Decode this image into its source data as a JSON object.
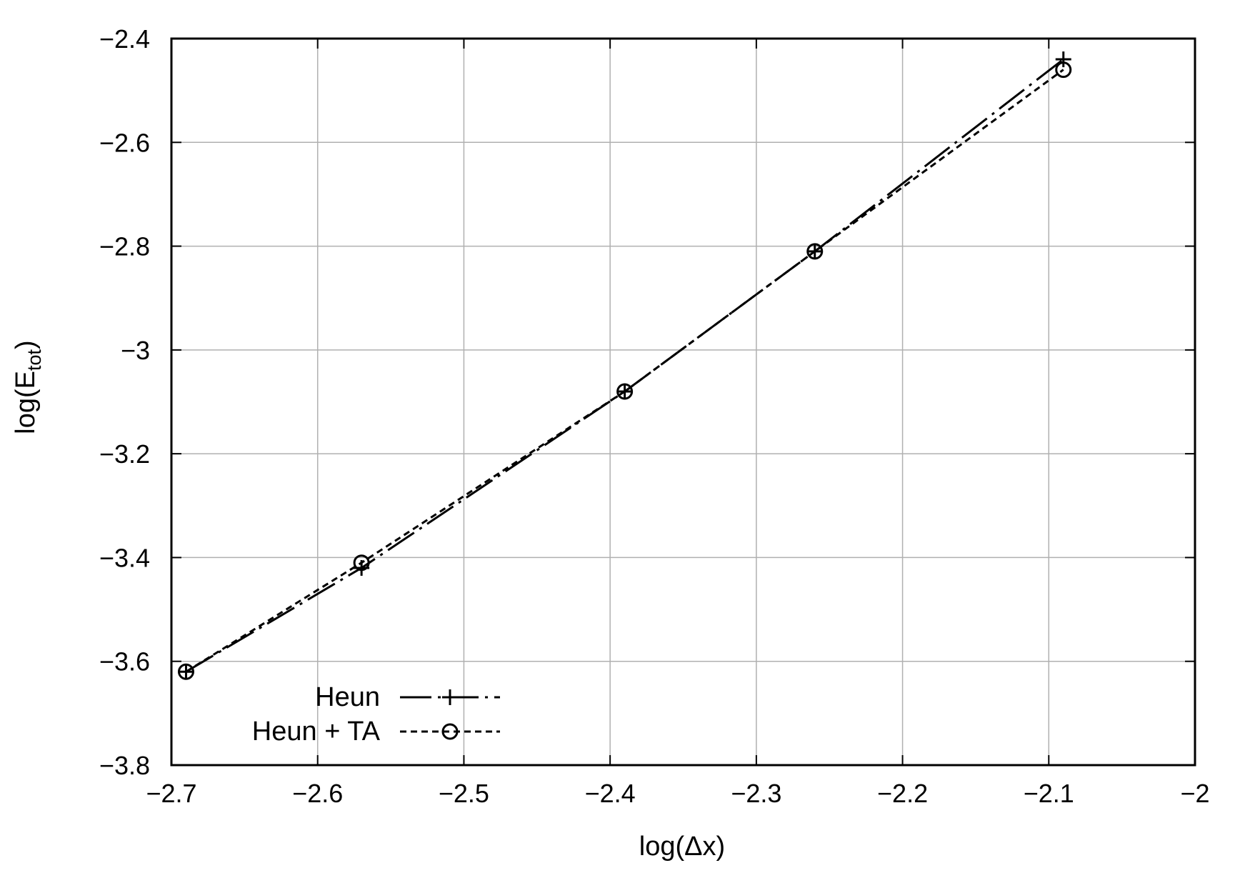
{
  "chart_data": {
    "type": "line",
    "title": "",
    "xlabel": "log(Δx)",
    "ylabel": {
      "main": "log(E",
      "sub": "tot",
      "close": ")"
    },
    "xlim": [
      -2.7,
      -2.0
    ],
    "ylim": [
      -3.8,
      -2.4
    ],
    "x_ticks": [
      -2.7,
      -2.6,
      -2.5,
      -2.4,
      -2.3,
      -2.2,
      -2.1,
      -2.0
    ],
    "x_tick_labels": [
      "−2.7",
      "−2.6",
      "−2.5",
      "−2.4",
      "−2.3",
      "−2.2",
      "−2.1",
      "−2"
    ],
    "y_ticks": [
      -3.8,
      -3.6,
      -3.4,
      -3.2,
      -3.0,
      -2.8,
      -2.6,
      -2.4
    ],
    "y_tick_labels": [
      "−3.8",
      "−3.6",
      "−3.4",
      "−3.2",
      "−3",
      "−2.8",
      "−2.6",
      "−2.4"
    ],
    "grid": true,
    "legend_position": "bottom-left",
    "series": [
      {
        "name": "Heun",
        "marker": "plus",
        "line_style": "long-dash",
        "color": "#000000",
        "x": [
          -2.69,
          -2.57,
          -2.39,
          -2.26,
          -2.09
        ],
        "y": [
          -3.62,
          -3.42,
          -3.08,
          -2.81,
          -2.44
        ]
      },
      {
        "name": "Heun + TA",
        "marker": "circle",
        "line_style": "dotted",
        "color": "#000000",
        "x": [
          -2.69,
          -2.57,
          -2.39,
          -2.26,
          -2.09
        ],
        "y": [
          -3.62,
          -3.41,
          -3.08,
          -2.81,
          -2.46
        ]
      }
    ]
  }
}
